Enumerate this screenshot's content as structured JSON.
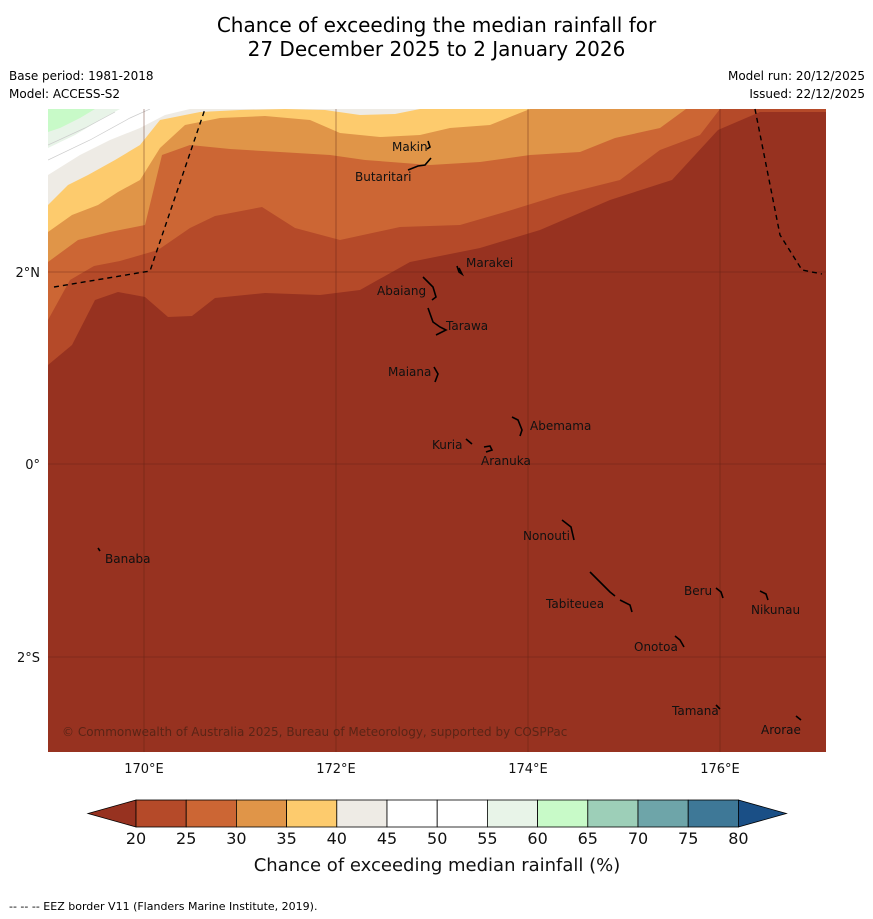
{
  "title_line1": "Chance of exceeding the median rainfall for",
  "title_line2": "27 December 2025 to 2 January 2026",
  "base_period": "Base period: 1981-2018",
  "model": "Model: ACCESS-S2",
  "model_run": "Model run: 20/12/2025",
  "issued": "Issued: 22/12/2025",
  "copyright": "© Commonwealth of Australia 2025, Bureau of Meteorology, supported by COSPPac",
  "footnote": "--  --  -- EEZ border V11 (Flanders Marine Institute, 2019).",
  "axes": {
    "lon_labels": [
      "170°E",
      "172°E",
      "174°E",
      "176°E"
    ],
    "lat_labels": [
      "2°N",
      "0°",
      "2°S"
    ]
  },
  "islands": {
    "makin": "Makin",
    "butaritari": "Butaritari",
    "marakei": "Marakei",
    "abaiang": "Abaiang",
    "tarawa": "Tarawa",
    "maiana": "Maiana",
    "abemama": "Abemama",
    "kuria": "Kuria",
    "aranuka": "Aranuka",
    "nonouti": "Nonouti",
    "banaba": "Banaba",
    "beru": "Beru",
    "nikunau": "Nikunau",
    "tabiteuea": "Tabiteuea",
    "onotoa": "Onotoa",
    "tamana": "Tamana",
    "arorae": "Arorae"
  },
  "colorbar": {
    "title": "Chance of exceeding median rainfall (%)",
    "ticks": [
      "20",
      "25",
      "30",
      "35",
      "40",
      "45",
      "50",
      "55",
      "60",
      "65",
      "70",
      "75",
      "80"
    ],
    "colors": [
      "#973220",
      "#b54a29",
      "#cc6634",
      "#e09548",
      "#fdcb6d",
      "#eeebe5",
      "#ffffff",
      "#ffffff",
      "#e8f4e8",
      "#c8fac8",
      "#9dcfb8",
      "#6ea5a9",
      "#3e7897",
      "#1a4f86"
    ]
  }
}
